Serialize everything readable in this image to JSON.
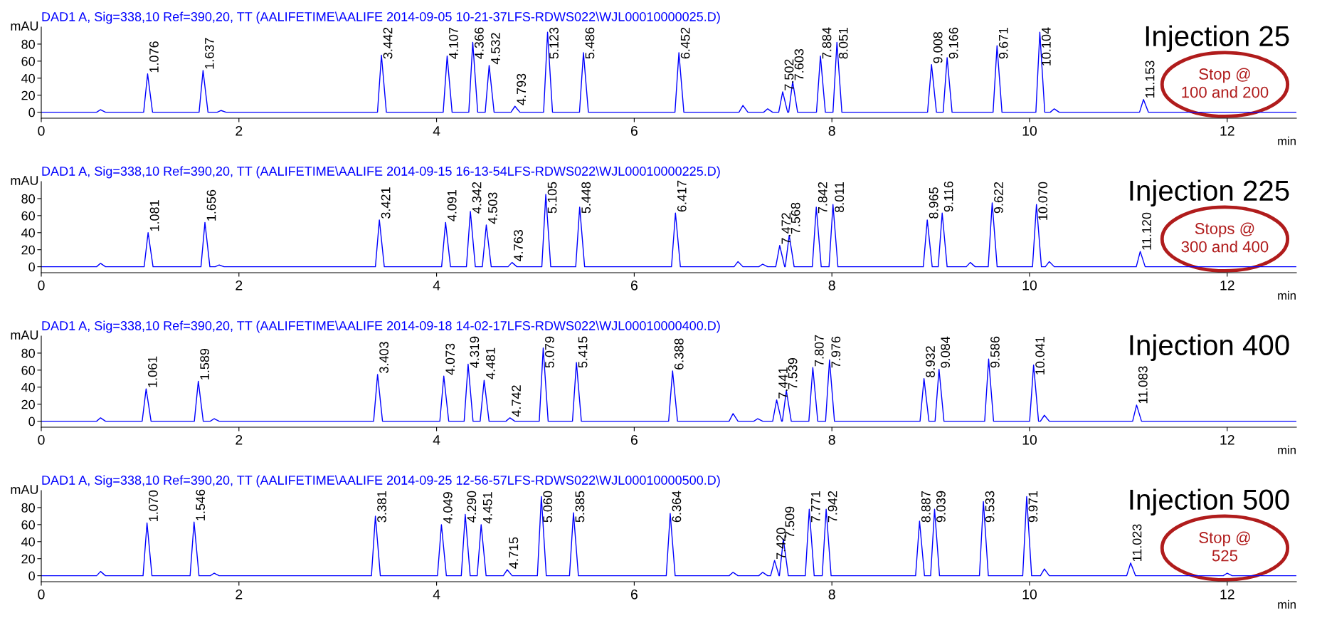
{
  "chart_data": [
    {
      "type": "line",
      "title": "DAD1 A, Sig=338,10 Ref=390,20, TT (AALIFETIME\\AALIFE 2014-09-05 10-21-37LFS-RDWS022\\WJL00010000025.D)",
      "xlabel": "min",
      "ylabel": "mAU",
      "xlim": [
        0,
        12.7
      ],
      "xticks": [
        0,
        2,
        4,
        6,
        8,
        10,
        12
      ],
      "ylim": [
        -7,
        100
      ],
      "yticks": [
        0,
        20,
        40,
        60,
        80
      ],
      "series": [
        {
          "color": "#0000ff",
          "x": [
            0,
            0.56,
            0.6,
            0.65,
            1.036,
            1.076,
            1.126,
            1.597,
            1.637,
            1.687,
            1.78,
            1.82,
            1.87,
            3.402,
            3.442,
            3.492,
            4.067,
            4.107,
            4.157,
            4.326,
            4.366,
            4.416,
            4.492,
            4.532,
            4.582,
            4.753,
            4.793,
            4.843,
            5.083,
            5.123,
            5.173,
            5.446,
            5.486,
            5.536,
            6.412,
            6.452,
            6.502,
            7.06,
            7.1,
            7.15,
            7.31,
            7.35,
            7.4,
            7.462,
            7.502,
            7.552,
            7.563,
            7.603,
            7.653,
            7.844,
            7.884,
            7.934,
            8.011,
            8.051,
            8.101,
            8.968,
            9.008,
            9.058,
            9.126,
            9.166,
            9.216,
            9.631,
            9.671,
            9.721,
            10.064,
            10.104,
            10.154,
            10.21,
            10.25,
            10.3,
            11.113,
            11.153,
            11.203,
            12.7
          ],
          "values": [
            0,
            0,
            3,
            0,
            0,
            45,
            0,
            0,
            49,
            0,
            0,
            2,
            0,
            0,
            67,
            0,
            0,
            66,
            0,
            0,
            82,
            0,
            0,
            55,
            0,
            0,
            7,
            0,
            0,
            94,
            0,
            0,
            70,
            0,
            0,
            70,
            0,
            0,
            8,
            0,
            0,
            4,
            0,
            0,
            24,
            0,
            0,
            36,
            0,
            0,
            66,
            0,
            0,
            82,
            0,
            0,
            56,
            0,
            0,
            64,
            0,
            0,
            78,
            0,
            0,
            94,
            0,
            0,
            4,
            0,
            0,
            15,
            0,
            0
          ]
        }
      ],
      "annotations": [
        "Injection 25",
        "Stop @\n100 and 200",
        {
          "text": "1.076",
          "x": 1.076,
          "y": 45
        },
        {
          "text": "1.637",
          "x": 1.637,
          "y": 49
        },
        {
          "text": "3.442",
          "x": 3.442,
          "y": 67
        },
        {
          "text": "4.107",
          "x": 4.107,
          "y": 66
        },
        {
          "text": "4.366",
          "x": 4.366,
          "y": 82
        },
        {
          "text": "4.532",
          "x": 4.532,
          "y": 55
        },
        {
          "text": "4.793",
          "x": 4.793,
          "y": 7
        },
        {
          "text": "5.123",
          "x": 5.123,
          "y": 94
        },
        {
          "text": "5.486",
          "x": 5.486,
          "y": 70
        },
        {
          "text": "6.452",
          "x": 6.452,
          "y": 70
        },
        {
          "text": "7.502",
          "x": 7.502,
          "y": 24
        },
        {
          "text": "7.603",
          "x": 7.603,
          "y": 36
        },
        {
          "text": "7.884",
          "x": 7.884,
          "y": 66
        },
        {
          "text": "8.051",
          "x": 8.051,
          "y": 82
        },
        {
          "text": "9.008",
          "x": 9.008,
          "y": 56
        },
        {
          "text": "9.166",
          "x": 9.166,
          "y": 64
        },
        {
          "text": "9.671",
          "x": 9.671,
          "y": 78
        },
        {
          "text": "10.104",
          "x": 10.104,
          "y": 94
        },
        {
          "text": "11.153",
          "x": 11.153,
          "y": 15
        }
      ]
    },
    {
      "type": "line",
      "title": "DAD1 A, Sig=338,10 Ref=390,20, TT (AALIFETIME\\AALIFE 2014-09-15 16-13-54LFS-RDWS022\\WJL00010000225.D)",
      "xlabel": "min",
      "ylabel": "mAU",
      "xlim": [
        0,
        12.7
      ],
      "xticks": [
        0,
        2,
        4,
        6,
        8,
        10,
        12
      ],
      "ylim": [
        -7,
        100
      ],
      "yticks": [
        0,
        20,
        40,
        60,
        80
      ],
      "series": [
        {
          "color": "#0000ff",
          "x": [
            0,
            0.56,
            0.6,
            0.65,
            1.041,
            1.081,
            1.131,
            1.616,
            1.656,
            1.706,
            1.76,
            1.8,
            1.85,
            3.381,
            3.421,
            3.471,
            4.051,
            4.091,
            4.141,
            4.302,
            4.342,
            4.392,
            4.463,
            4.503,
            4.553,
            4.723,
            4.763,
            4.813,
            5.065,
            5.105,
            5.155,
            5.408,
            5.448,
            5.498,
            6.377,
            6.417,
            6.467,
            7.01,
            7.05,
            7.1,
            7.26,
            7.3,
            7.35,
            7.432,
            7.472,
            7.522,
            7.528,
            7.568,
            7.618,
            7.802,
            7.842,
            7.892,
            7.971,
            8.011,
            8.061,
            8.925,
            8.965,
            9.015,
            9.076,
            9.116,
            9.166,
            9.36,
            9.4,
            9.45,
            9.582,
            9.622,
            9.672,
            10.03,
            10.07,
            10.12,
            10.16,
            10.2,
            10.25,
            11.08,
            11.12,
            11.17,
            12.7
          ],
          "values": [
            0,
            0,
            4,
            0,
            0,
            40,
            0,
            0,
            52,
            0,
            0,
            2,
            0,
            0,
            55,
            0,
            0,
            52,
            0,
            0,
            65,
            0,
            0,
            49,
            0,
            0,
            5,
            0,
            0,
            85,
            0,
            0,
            70,
            0,
            0,
            63,
            0,
            0,
            6,
            0,
            0,
            3,
            0,
            0,
            25,
            0,
            0,
            37,
            0,
            0,
            70,
            0,
            0,
            73,
            0,
            0,
            55,
            0,
            0,
            63,
            0,
            0,
            5,
            0,
            0,
            75,
            0,
            0,
            73,
            0,
            0,
            6,
            0,
            0,
            18,
            0,
            0
          ]
        }
      ],
      "annotations": [
        "Injection 225",
        "Stops @\n300 and 400",
        {
          "text": "1.081",
          "x": 1.081,
          "y": 40
        },
        {
          "text": "1.656",
          "x": 1.656,
          "y": 52
        },
        {
          "text": "3.421",
          "x": 3.421,
          "y": 55
        },
        {
          "text": "4.091",
          "x": 4.091,
          "y": 52
        },
        {
          "text": "4.342",
          "x": 4.342,
          "y": 65
        },
        {
          "text": "4.503",
          "x": 4.503,
          "y": 49
        },
        {
          "text": "4.763",
          "x": 4.763,
          "y": 5
        },
        {
          "text": "5.105",
          "x": 5.105,
          "y": 85
        },
        {
          "text": "5.448",
          "x": 5.448,
          "y": 70
        },
        {
          "text": "6.417",
          "x": 6.417,
          "y": 63
        },
        {
          "text": "7.472",
          "x": 7.472,
          "y": 25
        },
        {
          "text": "7.568",
          "x": 7.568,
          "y": 37
        },
        {
          "text": "7.842",
          "x": 7.842,
          "y": 70
        },
        {
          "text": "8.011",
          "x": 8.011,
          "y": 73
        },
        {
          "text": "8.965",
          "x": 8.965,
          "y": 55
        },
        {
          "text": "9.116",
          "x": 9.116,
          "y": 63
        },
        {
          "text": "9.622",
          "x": 9.622,
          "y": 75
        },
        {
          "text": "10.070",
          "x": 10.07,
          "y": 73
        },
        {
          "text": "11.120",
          "x": 11.12,
          "y": 18
        }
      ]
    },
    {
      "type": "line",
      "title": "DAD1 A, Sig=338,10 Ref=390,20, TT (AALIFETIME\\AALIFE 2014-09-18 14-02-17LFS-RDWS022\\WJL00010000400.D)",
      "xlabel": "min",
      "ylabel": "mAU",
      "xlim": [
        0,
        12.7
      ],
      "xticks": [
        0,
        2,
        4,
        6,
        8,
        10,
        12
      ],
      "ylim": [
        -7,
        100
      ],
      "yticks": [
        0,
        20,
        40,
        60,
        80
      ],
      "series": [
        {
          "color": "#0000ff",
          "x": [
            0,
            0.56,
            0.6,
            0.65,
            1.021,
            1.061,
            1.111,
            1.549,
            1.589,
            1.639,
            1.71,
            1.75,
            1.8,
            3.363,
            3.403,
            3.453,
            4.033,
            4.073,
            4.123,
            4.279,
            4.319,
            4.369,
            4.441,
            4.481,
            4.531,
            4.702,
            4.742,
            4.792,
            5.039,
            5.079,
            5.129,
            5.375,
            5.415,
            5.465,
            6.348,
            6.388,
            6.438,
            6.96,
            7.0,
            7.05,
            7.21,
            7.25,
            7.3,
            7.401,
            7.441,
            7.491,
            7.499,
            7.539,
            7.589,
            7.767,
            7.807,
            7.857,
            7.936,
            7.976,
            8.026,
            8.892,
            8.932,
            8.982,
            9.044,
            9.084,
            9.134,
            9.546,
            9.586,
            9.636,
            10.001,
            10.041,
            10.091,
            10.11,
            10.15,
            10.2,
            11.043,
            11.083,
            11.133,
            12.7
          ],
          "values": [
            0,
            0,
            4,
            0,
            0,
            38,
            0,
            0,
            47,
            0,
            0,
            3,
            0,
            0,
            55,
            0,
            0,
            53,
            0,
            0,
            67,
            0,
            0,
            48,
            0,
            0,
            4,
            0,
            0,
            86,
            0,
            0,
            69,
            0,
            0,
            59,
            0,
            0,
            9,
            0,
            0,
            3,
            0,
            0,
            25,
            0,
            0,
            36,
            0,
            0,
            63,
            0,
            0,
            72,
            0,
            0,
            50,
            0,
            0,
            61,
            0,
            0,
            73,
            0,
            0,
            66,
            0,
            0,
            7,
            0,
            0,
            19,
            0,
            0
          ]
        }
      ],
      "annotations": [
        "Injection 400",
        {
          "text": "1.061",
          "x": 1.061,
          "y": 38
        },
        {
          "text": "1.589",
          "x": 1.589,
          "y": 47
        },
        {
          "text": "3.403",
          "x": 3.403,
          "y": 55
        },
        {
          "text": "4.073",
          "x": 4.073,
          "y": 53
        },
        {
          "text": "4.319",
          "x": 4.319,
          "y": 67
        },
        {
          "text": "4.481",
          "x": 4.481,
          "y": 48
        },
        {
          "text": "4.742",
          "x": 4.742,
          "y": 4
        },
        {
          "text": "5.079",
          "x": 5.079,
          "y": 86
        },
        {
          "text": "5.415",
          "x": 5.415,
          "y": 69
        },
        {
          "text": "6.388",
          "x": 6.388,
          "y": 59
        },
        {
          "text": "7.441",
          "x": 7.441,
          "y": 25
        },
        {
          "text": "7.539",
          "x": 7.539,
          "y": 36
        },
        {
          "text": "7.807",
          "x": 7.807,
          "y": 63
        },
        {
          "text": "7.976",
          "x": 7.976,
          "y": 72
        },
        {
          "text": "8.932",
          "x": 8.932,
          "y": 50
        },
        {
          "text": "9.084",
          "x": 9.084,
          "y": 61
        },
        {
          "text": "9.586",
          "x": 9.586,
          "y": 73
        },
        {
          "text": "10.041",
          "x": 10.041,
          "y": 66
        },
        {
          "text": "11.083",
          "x": 11.083,
          "y": 19
        }
      ]
    },
    {
      "type": "line",
      "title": "DAD1 A, Sig=338,10 Ref=390,20, TT (AALIFETIME\\AALIFE 2014-09-25 12-56-57LFS-RDWS022\\WJL00010000500.D)",
      "xlabel": "min",
      "ylabel": "mAU",
      "xlim": [
        0,
        12.7
      ],
      "xticks": [
        0,
        2,
        4,
        6,
        8,
        10,
        12
      ],
      "ylim": [
        -7,
        100
      ],
      "yticks": [
        0,
        20,
        40,
        60,
        80
      ],
      "series": [
        {
          "color": "#0000ff",
          "x": [
            0,
            0.56,
            0.6,
            0.65,
            1.03,
            1.07,
            1.12,
            1.506,
            1.546,
            1.596,
            1.71,
            1.75,
            1.8,
            3.341,
            3.381,
            3.431,
            4.009,
            4.049,
            4.099,
            4.25,
            4.29,
            4.34,
            4.411,
            4.451,
            4.501,
            4.675,
            4.715,
            4.765,
            5.02,
            5.06,
            5.11,
            5.345,
            5.385,
            5.435,
            6.324,
            6.364,
            6.414,
            6.96,
            7.0,
            7.05,
            7.26,
            7.3,
            7.35,
            7.38,
            7.42,
            7.465,
            7.469,
            7.509,
            7.559,
            7.731,
            7.771,
            7.821,
            7.902,
            7.942,
            7.992,
            8.847,
            8.887,
            8.937,
            8.999,
            9.039,
            9.089,
            9.493,
            9.533,
            9.583,
            9.931,
            9.971,
            10.021,
            10.11,
            10.15,
            10.2,
            10.983,
            11.023,
            11.073,
            11.96,
            12.0,
            12.05,
            12.7
          ],
          "values": [
            0,
            0,
            5,
            0,
            0,
            62,
            0,
            0,
            63,
            0,
            0,
            3,
            0,
            0,
            70,
            0,
            0,
            60,
            0,
            0,
            72,
            0,
            0,
            60,
            0,
            0,
            7,
            0,
            0,
            93,
            0,
            0,
            74,
            0,
            0,
            73,
            0,
            0,
            4,
            0,
            0,
            4,
            0,
            0,
            18,
            0,
            0,
            43,
            0,
            0,
            78,
            0,
            0,
            78,
            0,
            0,
            64,
            0,
            0,
            78,
            0,
            0,
            87,
            0,
            0,
            93,
            0,
            0,
            8,
            0,
            0,
            15,
            0,
            0,
            3,
            0,
            0
          ]
        }
      ],
      "annotations": [
        "Injection 500",
        "Stop @\n525",
        {
          "text": "1.070",
          "x": 1.07,
          "y": 62
        },
        {
          "text": "1.546",
          "x": 1.546,
          "y": 63
        },
        {
          "text": "3.381",
          "x": 3.381,
          "y": 70
        },
        {
          "text": "4.049",
          "x": 4.049,
          "y": 60
        },
        {
          "text": "4.290",
          "x": 4.29,
          "y": 72
        },
        {
          "text": "4.451",
          "x": 4.451,
          "y": 60
        },
        {
          "text": "4.715",
          "x": 4.715,
          "y": 7
        },
        {
          "text": "5.060",
          "x": 5.06,
          "y": 93
        },
        {
          "text": "5.385",
          "x": 5.385,
          "y": 74
        },
        {
          "text": "6.364",
          "x": 6.364,
          "y": 73
        },
        {
          "text": "7.420",
          "x": 7.42,
          "y": 18
        },
        {
          "text": "7.509",
          "x": 7.509,
          "y": 43
        },
        {
          "text": "7.771",
          "x": 7.771,
          "y": 78
        },
        {
          "text": "7.942",
          "x": 7.942,
          "y": 78
        },
        {
          "text": "8.887",
          "x": 8.887,
          "y": 64
        },
        {
          "text": "9.039",
          "x": 9.039,
          "y": 78
        },
        {
          "text": "9.533",
          "x": 9.533,
          "y": 87
        },
        {
          "text": "9.971",
          "x": 9.971,
          "y": 93
        },
        {
          "text": "11.023",
          "x": 11.023,
          "y": 15
        }
      ]
    }
  ]
}
